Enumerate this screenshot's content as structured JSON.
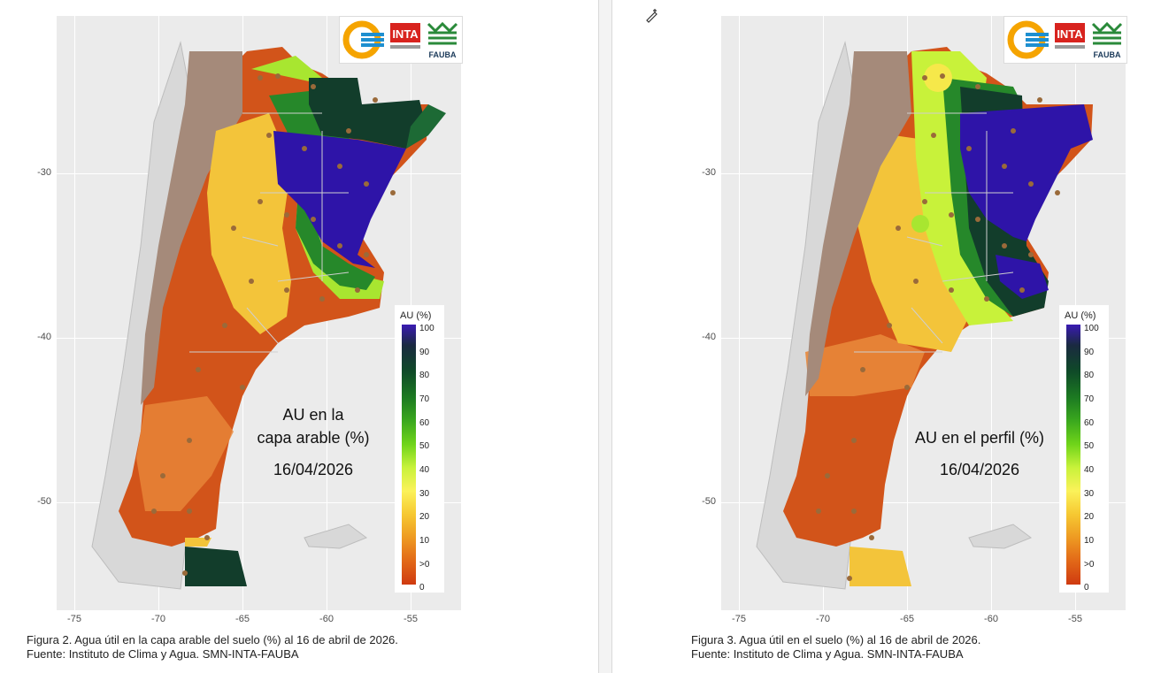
{
  "colors": {
    "blue": "#2e14a8",
    "darkgreen": "#123d2b",
    "green": "#26882a",
    "lime": "#a8e630",
    "yellow": "#f8e244",
    "orange": "#e57a22",
    "rust": "#d2541a",
    "brown": "#a58a7a",
    "greyland": "#c8c8c8",
    "dot": "#9a6a3a"
  },
  "axes": {
    "y_ticks": [
      "-30",
      "-40",
      "-50"
    ],
    "x_ticks": [
      "-75",
      "-70",
      "-65",
      "-60",
      "-55"
    ]
  },
  "legend": {
    "title": "AU (%)",
    "levels": [
      "100",
      "90",
      "80",
      "70",
      "60",
      "50",
      "40",
      "30",
      "20",
      "10",
      ">0",
      "0"
    ]
  },
  "logos": {
    "inta": "INTA",
    "fauba": "FAUBA"
  },
  "maps": [
    {
      "title_line1": "AU en la",
      "title_line2": "capa arable (%)",
      "date": "16/04/2026",
      "caption_line1": "Figura 2. Agua útil en la capa arable del suelo (%) al 16 de abril de 2026.",
      "caption_line2": "Fuente: Instituto de Clima y Agua. SMN-INTA-FAUBA"
    },
    {
      "title_line1": "AU en el perfil (%)",
      "title_line2": "",
      "date": "16/04/2026",
      "caption_line1": "Figura 3. Agua útil en el suelo (%) al 16 de abril de 2026.",
      "caption_line2": "Fuente: Instituto de Clima y Agua. SMN-INTA-FAUBA"
    }
  ]
}
